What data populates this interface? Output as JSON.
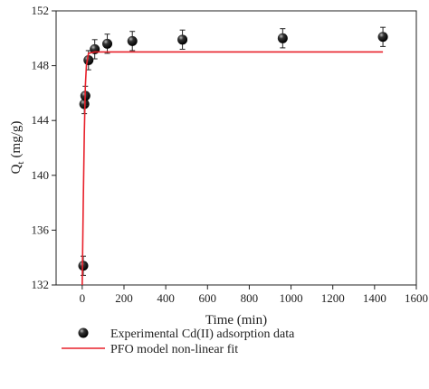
{
  "chart_data": {
    "type": "scatter",
    "xlabel": "Time (min)",
    "ylabel": {
      "symbol": "Q",
      "subscript": "t",
      "unit": "(mg/g)"
    },
    "xlim": [
      -125,
      1600
    ],
    "xticks": [
      0,
      200,
      400,
      600,
      800,
      1000,
      1200,
      1400,
      1600
    ],
    "ylim": [
      132,
      152
    ],
    "yticks": [
      132,
      136,
      140,
      144,
      148,
      152
    ],
    "series": [
      {
        "name": "Experimental Cd(II) adsorption data",
        "color": "#000000",
        "kind": "points",
        "x": [
          5,
          10,
          15,
          30,
          60,
          120,
          240,
          480,
          960,
          1440
        ],
        "values": [
          133.4,
          145.2,
          145.8,
          148.4,
          149.2,
          149.6,
          149.8,
          149.9,
          150.0,
          150.1
        ],
        "errors": [
          0.7,
          0.7,
          0.7,
          0.7,
          0.7,
          0.7,
          0.7,
          0.7,
          0.7,
          0.7
        ]
      },
      {
        "name": "PFO model non-linear fit",
        "color": "#e8202a",
        "kind": "line",
        "x": [
          0,
          5,
          10,
          15,
          20,
          30,
          60,
          1440
        ],
        "values": [
          132,
          138,
          143,
          146.5,
          148,
          148.9,
          149,
          149
        ]
      }
    ]
  }
}
